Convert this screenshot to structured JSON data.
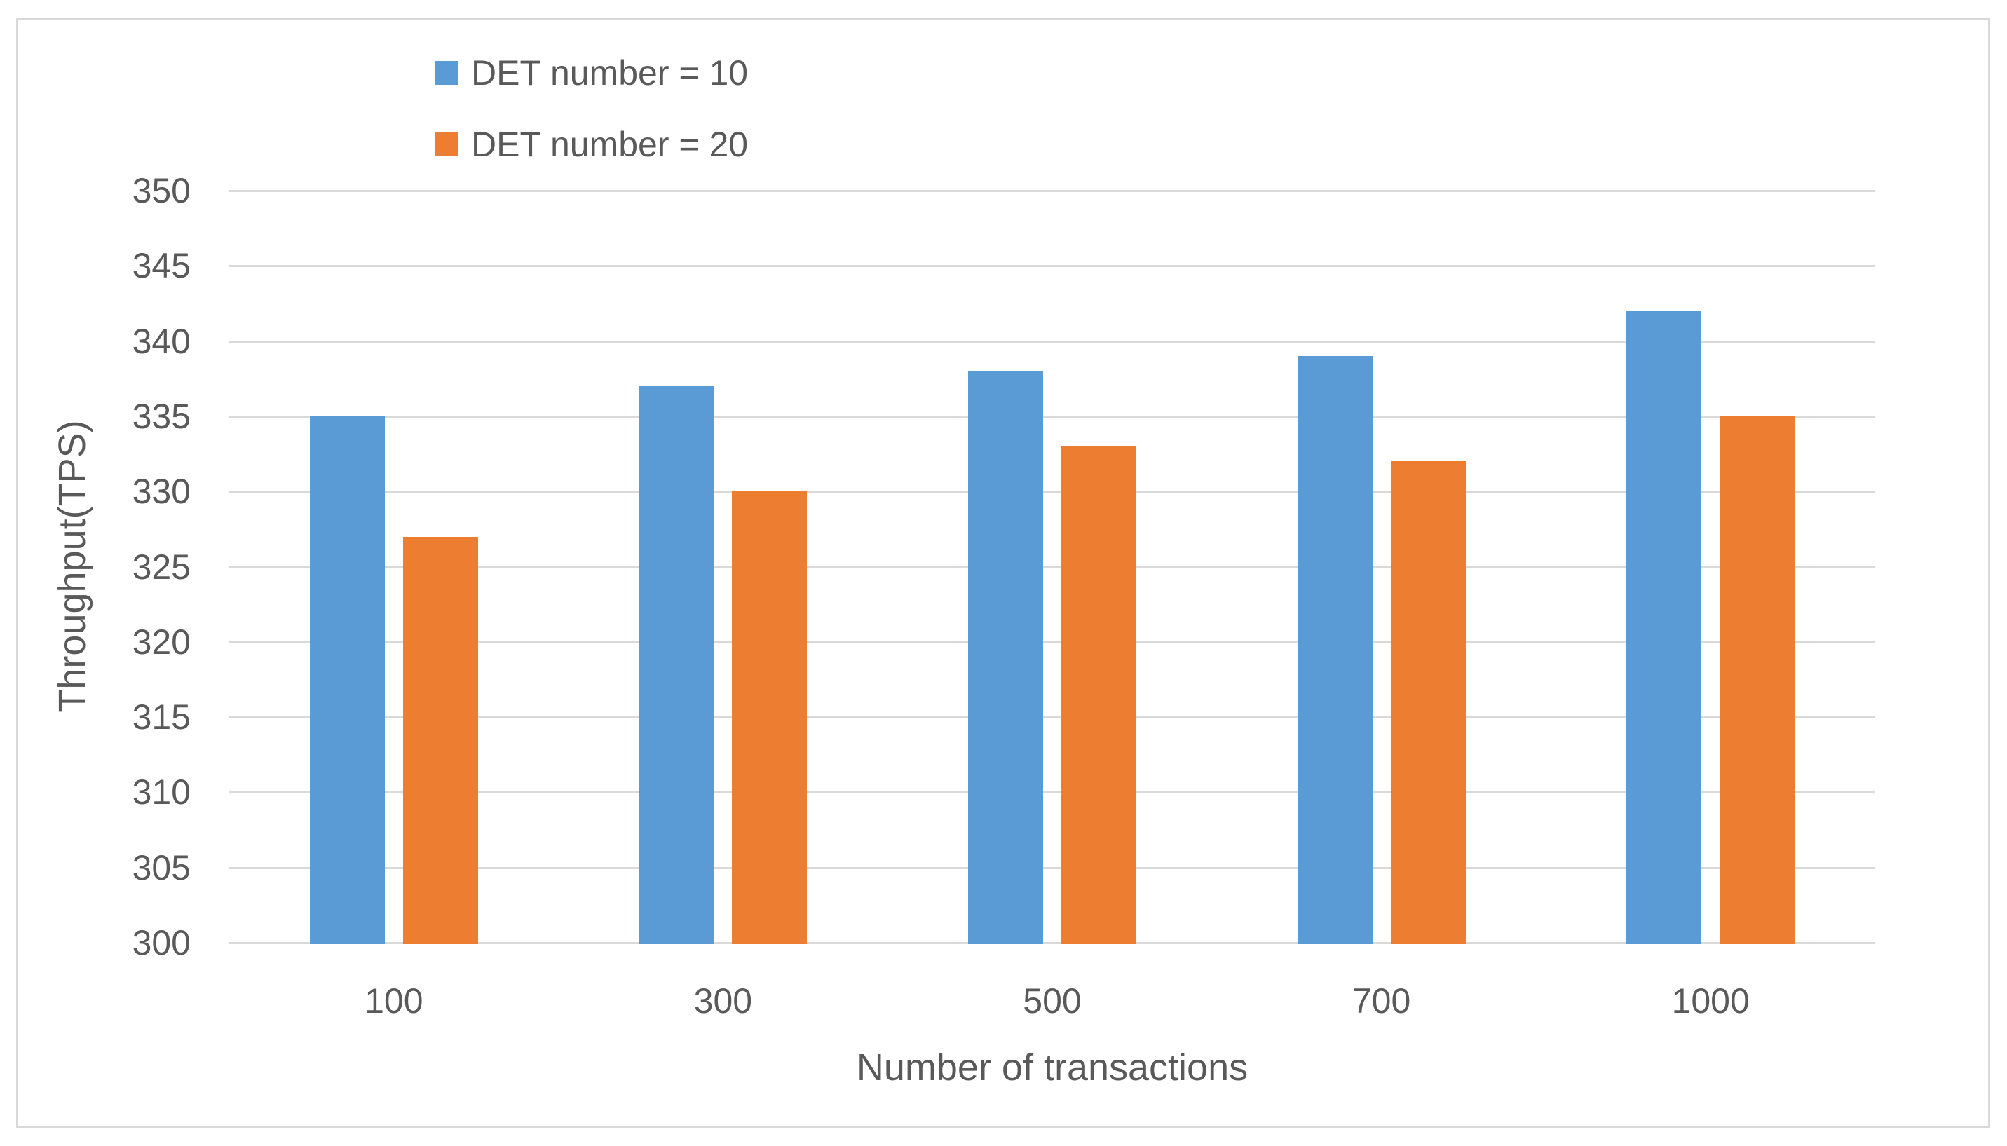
{
  "figure": {
    "background": "#ffffff",
    "border_color": "#d9d9d9"
  },
  "chart_data": {
    "type": "bar",
    "title": "",
    "categories": [
      "100",
      "300",
      "500",
      "700",
      "1000"
    ],
    "series": [
      {
        "name": "DET number = 10",
        "color": "#5b9bd5",
        "values": [
          335,
          337,
          338,
          339,
          342
        ]
      },
      {
        "name": "DET number = 20",
        "color": "#ed7d31",
        "values": [
          327,
          330,
          333,
          332,
          335
        ]
      }
    ],
    "xlabel": "Number of transactions",
    "ylabel": "Throughput(TPS)",
    "ylim": [
      300,
      350
    ],
    "yticks": [
      300,
      305,
      310,
      315,
      320,
      325,
      330,
      335,
      340,
      345,
      350
    ],
    "grid": "horizontal-gridlines",
    "gridline_color": "#d9d9d9",
    "legend_position": "top-left-inside",
    "text_color": "#595959"
  }
}
